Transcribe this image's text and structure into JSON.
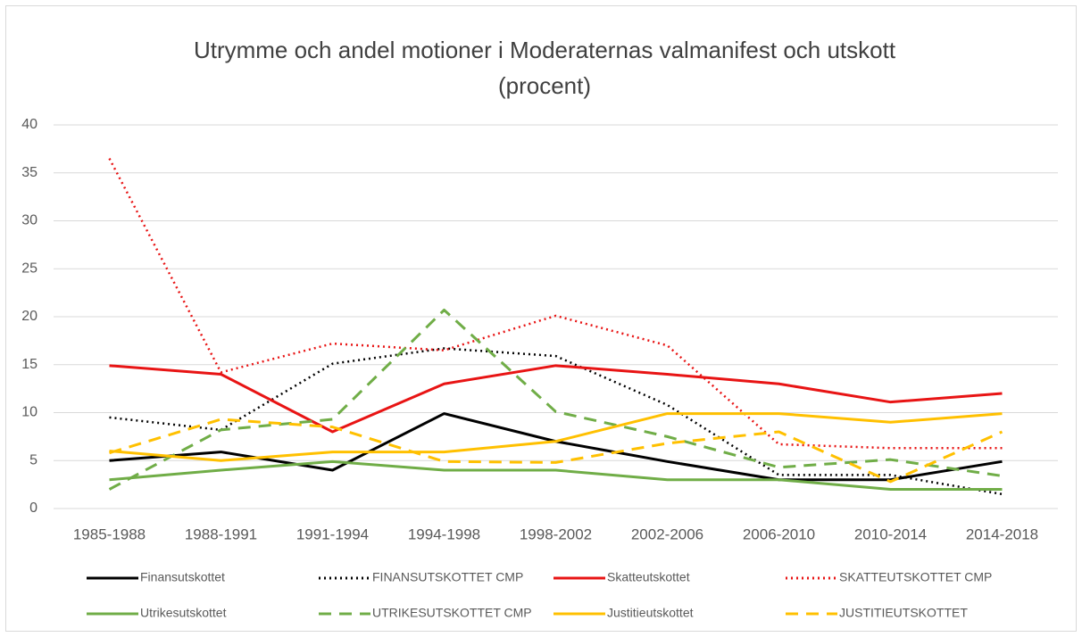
{
  "chart_data": {
    "type": "line",
    "title": [
      "Utrymme och andel motioner i Moderaternas valmanifest och utskott",
      "(procent)"
    ],
    "categories": [
      "1985-1988",
      "1988-1991",
      "1991-1994",
      "1994-1998",
      "1998-2002",
      "2002-2006",
      "2006-2010",
      "2010-2014",
      "2014-2018"
    ],
    "ylim": [
      0,
      40
    ],
    "yticks": [
      0,
      5,
      10,
      15,
      20,
      25,
      30,
      35,
      40
    ],
    "grid": true,
    "legend": "bottom",
    "series": [
      {
        "name": "Finansutskottet",
        "color": "#000000",
        "dash": "solid",
        "values": [
          5,
          5.9,
          4,
          9.9,
          7,
          4.9,
          3,
          3,
          4.9
        ]
      },
      {
        "name": "FINANSUTSKOTTET  CMP",
        "color": "#000000",
        "dash": "dotted",
        "values": [
          9.5,
          8.2,
          15.1,
          16.7,
          15.9,
          10.8,
          3.5,
          3.5,
          1.5
        ]
      },
      {
        "name": "Skatteutskottet",
        "color": "#e81414",
        "dash": "solid",
        "values": [
          14.9,
          14,
          8,
          13,
          14.9,
          14,
          13,
          11.1,
          12
        ]
      },
      {
        "name": "SKATTEUTSKOTTET  CMP",
        "color": "#e81414",
        "dash": "dotted",
        "values": [
          36.5,
          14.2,
          17.2,
          16.5,
          20.1,
          17,
          6.7,
          6.3,
          6.3
        ]
      },
      {
        "name": "Utrikesutskottet",
        "color": "#70ad47",
        "dash": "solid",
        "values": [
          3,
          4,
          4.9,
          4,
          4,
          3,
          3,
          2,
          2
        ]
      },
      {
        "name": "UTRIKESUTSKOTTET  CMP",
        "color": "#70ad47",
        "dash": "dashed",
        "values": [
          2,
          8.2,
          9.3,
          20.7,
          10.1,
          7.5,
          4.3,
          5.1,
          3.4
        ]
      },
      {
        "name": "Justitieutskottet",
        "color": "#ffc000",
        "dash": "solid",
        "values": [
          6,
          5,
          5.9,
          5.9,
          7,
          9.9,
          9.9,
          9,
          9.9
        ]
      },
      {
        "name": "JUSTITIEUTSKOTTET",
        "color": "#ffc000",
        "dash": "dashed",
        "values": [
          5.8,
          9.3,
          8.5,
          4.9,
          4.8,
          6.8,
          8,
          2.8,
          8
        ]
      }
    ]
  }
}
